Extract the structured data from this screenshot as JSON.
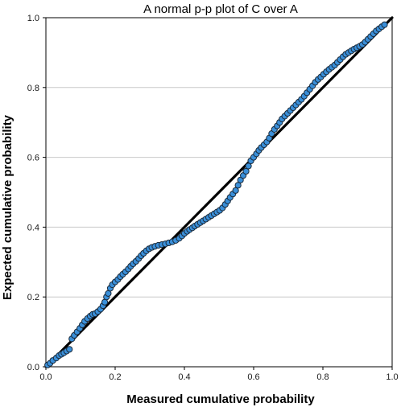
{
  "chart_data": {
    "type": "scatter",
    "title": "A normal p-p plot of C over A",
    "xlabel": "Measured cumulative probability",
    "ylabel": "Expected cumulative probability",
    "xlim": [
      0.0,
      1.0
    ],
    "ylim": [
      0.0,
      1.0
    ],
    "x_ticks": [
      "0.0",
      "0.2",
      "0.4",
      "0.6",
      "0.8",
      "1.0"
    ],
    "y_ticks": [
      "0.0",
      "0.2",
      "0.4",
      "0.6",
      "0.8",
      "1.0"
    ],
    "grid": "horizontal",
    "legend": "none",
    "reference_line": {
      "from": [
        0,
        0
      ],
      "to": [
        1,
        1
      ],
      "color": "#000000"
    },
    "point_color": "#3a8fd9",
    "point_edge_color": "#1a2a3a",
    "series": [
      {
        "points": [
          [
            0.005,
            0.005
          ],
          [
            0.012,
            0.01
          ],
          [
            0.02,
            0.018
          ],
          [
            0.03,
            0.025
          ],
          [
            0.038,
            0.032
          ],
          [
            0.045,
            0.036
          ],
          [
            0.052,
            0.04
          ],
          [
            0.06,
            0.045
          ],
          [
            0.068,
            0.05
          ],
          [
            0.075,
            0.08
          ],
          [
            0.082,
            0.09
          ],
          [
            0.09,
            0.1
          ],
          [
            0.098,
            0.11
          ],
          [
            0.105,
            0.12
          ],
          [
            0.112,
            0.13
          ],
          [
            0.12,
            0.138
          ],
          [
            0.128,
            0.145
          ],
          [
            0.135,
            0.15
          ],
          [
            0.142,
            0.152
          ],
          [
            0.15,
            0.158
          ],
          [
            0.158,
            0.165
          ],
          [
            0.165,
            0.175
          ],
          [
            0.17,
            0.185
          ],
          [
            0.175,
            0.2
          ],
          [
            0.18,
            0.21
          ],
          [
            0.186,
            0.225
          ],
          [
            0.192,
            0.235
          ],
          [
            0.2,
            0.243
          ],
          [
            0.208,
            0.25
          ],
          [
            0.215,
            0.258
          ],
          [
            0.222,
            0.265
          ],
          [
            0.23,
            0.272
          ],
          [
            0.238,
            0.28
          ],
          [
            0.245,
            0.288
          ],
          [
            0.252,
            0.295
          ],
          [
            0.26,
            0.302
          ],
          [
            0.268,
            0.31
          ],
          [
            0.275,
            0.318
          ],
          [
            0.282,
            0.325
          ],
          [
            0.29,
            0.332
          ],
          [
            0.298,
            0.338
          ],
          [
            0.306,
            0.342
          ],
          [
            0.315,
            0.345
          ],
          [
            0.325,
            0.348
          ],
          [
            0.335,
            0.35
          ],
          [
            0.345,
            0.352
          ],
          [
            0.355,
            0.355
          ],
          [
            0.365,
            0.358
          ],
          [
            0.375,
            0.362
          ],
          [
            0.385,
            0.368
          ],
          [
            0.393,
            0.375
          ],
          [
            0.4,
            0.382
          ],
          [
            0.408,
            0.388
          ],
          [
            0.415,
            0.393
          ],
          [
            0.423,
            0.398
          ],
          [
            0.43,
            0.403
          ],
          [
            0.438,
            0.408
          ],
          [
            0.446,
            0.413
          ],
          [
            0.454,
            0.418
          ],
          [
            0.462,
            0.423
          ],
          [
            0.47,
            0.428
          ],
          [
            0.478,
            0.433
          ],
          [
            0.486,
            0.438
          ],
          [
            0.494,
            0.443
          ],
          [
            0.502,
            0.448
          ],
          [
            0.51,
            0.455
          ],
          [
            0.518,
            0.465
          ],
          [
            0.525,
            0.475
          ],
          [
            0.532,
            0.485
          ],
          [
            0.54,
            0.495
          ],
          [
            0.548,
            0.505
          ],
          [
            0.555,
            0.52
          ],
          [
            0.562,
            0.535
          ],
          [
            0.57,
            0.548
          ],
          [
            0.578,
            0.56
          ],
          [
            0.585,
            0.575
          ],
          [
            0.592,
            0.59
          ],
          [
            0.6,
            0.6
          ],
          [
            0.608,
            0.61
          ],
          [
            0.615,
            0.62
          ],
          [
            0.622,
            0.628
          ],
          [
            0.63,
            0.636
          ],
          [
            0.638,
            0.644
          ],
          [
            0.645,
            0.655
          ],
          [
            0.652,
            0.668
          ],
          [
            0.66,
            0.68
          ],
          [
            0.668,
            0.69
          ],
          [
            0.675,
            0.7
          ],
          [
            0.682,
            0.71
          ],
          [
            0.69,
            0.718
          ],
          [
            0.698,
            0.726
          ],
          [
            0.706,
            0.734
          ],
          [
            0.714,
            0.742
          ],
          [
            0.722,
            0.75
          ],
          [
            0.73,
            0.758
          ],
          [
            0.738,
            0.766
          ],
          [
            0.746,
            0.775
          ],
          [
            0.754,
            0.785
          ],
          [
            0.762,
            0.795
          ],
          [
            0.77,
            0.805
          ],
          [
            0.778,
            0.815
          ],
          [
            0.786,
            0.823
          ],
          [
            0.794,
            0.83
          ],
          [
            0.802,
            0.838
          ],
          [
            0.81,
            0.845
          ],
          [
            0.818,
            0.852
          ],
          [
            0.826,
            0.858
          ],
          [
            0.834,
            0.864
          ],
          [
            0.842,
            0.872
          ],
          [
            0.85,
            0.88
          ],
          [
            0.858,
            0.888
          ],
          [
            0.866,
            0.895
          ],
          [
            0.874,
            0.9
          ],
          [
            0.882,
            0.905
          ],
          [
            0.89,
            0.91
          ],
          [
            0.898,
            0.914
          ],
          [
            0.906,
            0.918
          ],
          [
            0.914,
            0.923
          ],
          [
            0.922,
            0.93
          ],
          [
            0.93,
            0.938
          ],
          [
            0.938,
            0.946
          ],
          [
            0.946,
            0.954
          ],
          [
            0.954,
            0.962
          ],
          [
            0.962,
            0.968
          ],
          [
            0.97,
            0.974
          ],
          [
            0.978,
            0.98
          ]
        ]
      }
    ]
  }
}
